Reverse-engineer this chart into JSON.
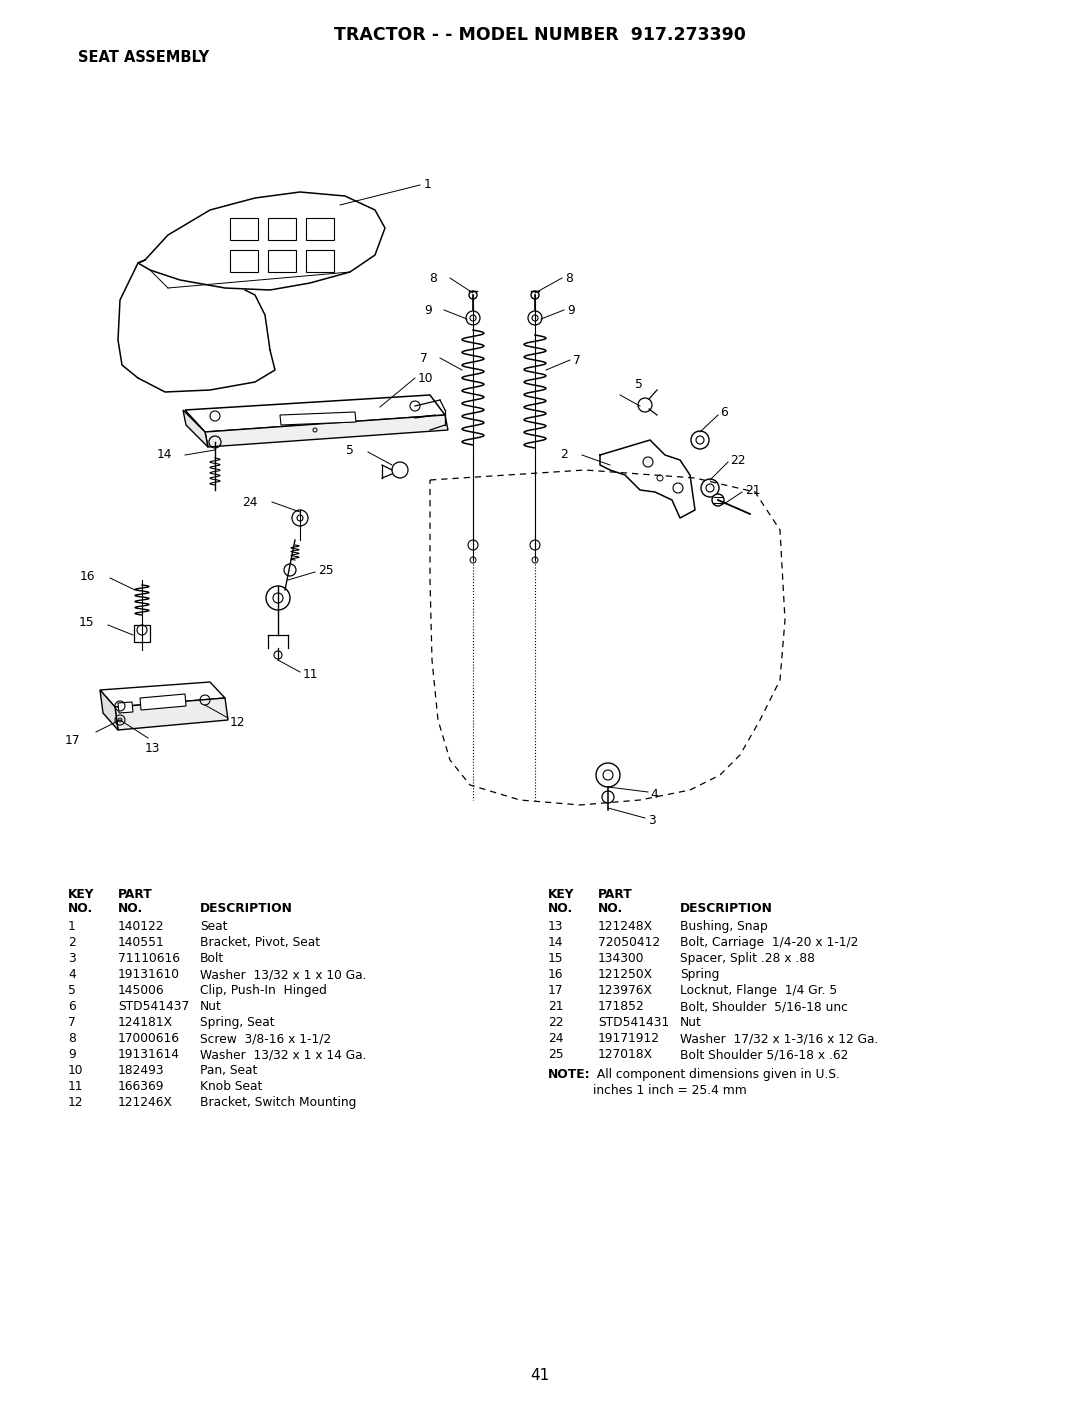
{
  "title": "TRACTOR - - MODEL NUMBER  917.273390",
  "subtitle": "SEAT ASSEMBLY",
  "page_number": "41",
  "background_color": "#ffffff",
  "text_color": "#000000",
  "title_fontsize": 12.5,
  "subtitle_fontsize": 10.5,
  "parts_left": [
    [
      "1",
      "140122",
      "Seat"
    ],
    [
      "2",
      "140551",
      "Bracket, Pivot, Seat"
    ],
    [
      "3",
      "71110616",
      "Bolt"
    ],
    [
      "4",
      "19131610",
      "Washer  13/32 x 1 x 10 Ga."
    ],
    [
      "5",
      "145006",
      "Clip, Push-In  Hinged"
    ],
    [
      "6",
      "STD541437",
      "Nut"
    ],
    [
      "7",
      "124181X",
      "Spring, Seat"
    ],
    [
      "8",
      "17000616",
      "Screw  3/8-16 x 1-1/2"
    ],
    [
      "9",
      "19131614",
      "Washer  13/32 x 1 x 14 Ga."
    ],
    [
      "10",
      "182493",
      "Pan, Seat"
    ],
    [
      "11",
      "166369",
      "Knob Seat"
    ],
    [
      "12",
      "121246X",
      "Bracket, Switch Mounting"
    ]
  ],
  "parts_right": [
    [
      "13",
      "121248X",
      "Bushing, Snap"
    ],
    [
      "14",
      "72050412",
      "Bolt, Carriage  1/4-20 x 1-1/2"
    ],
    [
      "15",
      "134300",
      "Spacer, Split .28 x .88"
    ],
    [
      "16",
      "121250X",
      "Spring"
    ],
    [
      "17",
      "123976X",
      "Locknut, Flange  1/4 Gr. 5"
    ],
    [
      "21",
      "171852",
      "Bolt, Shoulder  5/16-18 unc"
    ],
    [
      "22",
      "STD541431",
      "Nut"
    ],
    [
      "24",
      "19171912",
      "Washer  17/32 x 1-3/16 x 12 Ga."
    ],
    [
      "25",
      "127018X",
      "Bolt Shoulder 5/16-18 x .62"
    ]
  ]
}
